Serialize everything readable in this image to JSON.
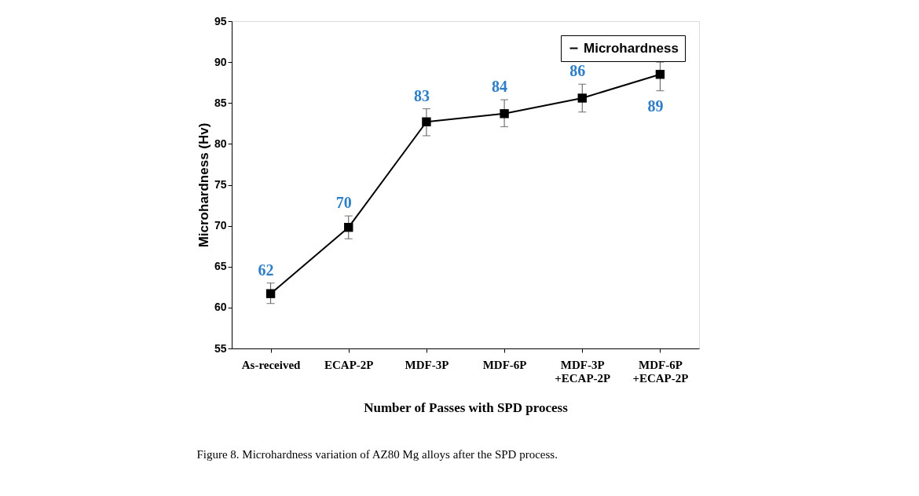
{
  "chart_data": {
    "type": "line",
    "xlabel": "Number of Passes with SPD process",
    "ylabel": "Microhardness (Hv)",
    "categories": [
      "As-received",
      "ECAP-2P",
      "MDF-3P",
      "MDF-6P",
      "MDF-3P\n+ECAP-2P",
      "MDF-6P\n+ECAP-2P"
    ],
    "series": [
      {
        "name": "Microhardness",
        "color": "#000000",
        "values": [
          61.7,
          69.8,
          82.7,
          83.7,
          85.6,
          88.5
        ],
        "errors": [
          [
            60.5,
            63.0
          ],
          [
            68.4,
            71.2
          ],
          [
            81.0,
            84.3
          ],
          [
            82.1,
            85.4
          ],
          [
            83.9,
            87.3
          ],
          [
            86.5,
            90.0
          ]
        ],
        "value_labels": [
          "62",
          "70",
          "83",
          "84",
          "86",
          "89"
        ]
      }
    ],
    "ylim": [
      55,
      95
    ],
    "yticks": [
      55,
      60,
      65,
      70,
      75,
      80,
      85,
      90,
      95
    ],
    "marker": "square",
    "line_style": "solid",
    "legend": "top right",
    "grid": false,
    "annotations": [
      "Figure 8. Microhardness variation of AZ80 Mg alloys after the SPD process."
    ]
  }
}
